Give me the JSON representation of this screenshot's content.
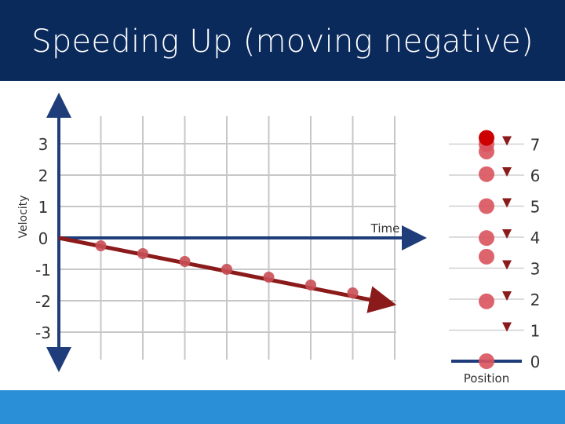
{
  "title": "Speeding Up (moving negative)",
  "chart_data": [
    {
      "type": "line",
      "xlabel": "Time",
      "ylabel": "Velocity",
      "y_ticks": [
        "3",
        "2",
        "1",
        "0",
        "-1",
        "-2",
        "-3"
      ],
      "ylim": [
        -3,
        3
      ],
      "grid": true,
      "series": [
        {
          "x": [
            0,
            1,
            2,
            3,
            4,
            5,
            6,
            7
          ],
          "values": [
            0,
            -0.25,
            -0.5,
            -0.75,
            -1.0,
            -1.25,
            -1.5,
            -1.75
          ]
        }
      ],
      "colors": {
        "axis": "#1f3d7a",
        "line": "#8b1a1a",
        "point": "#c94f57",
        "grid": "#c7c7c7"
      }
    },
    {
      "type": "scatter",
      "xlabel": "Position",
      "y_ticks": [
        "7",
        "6",
        "5",
        "4",
        "3",
        "2",
        "1",
        "0"
      ],
      "ylim": [
        0,
        7
      ],
      "positions": [
        0,
        1.93,
        3.37,
        3.97,
        5.0,
        6.03,
        6.76,
        7.0,
        7.2
      ],
      "colors": {
        "axis": "#1f3d7a",
        "arrow": "#8b1a1a",
        "point": "#d9535d",
        "current": "#cc0000"
      }
    }
  ]
}
